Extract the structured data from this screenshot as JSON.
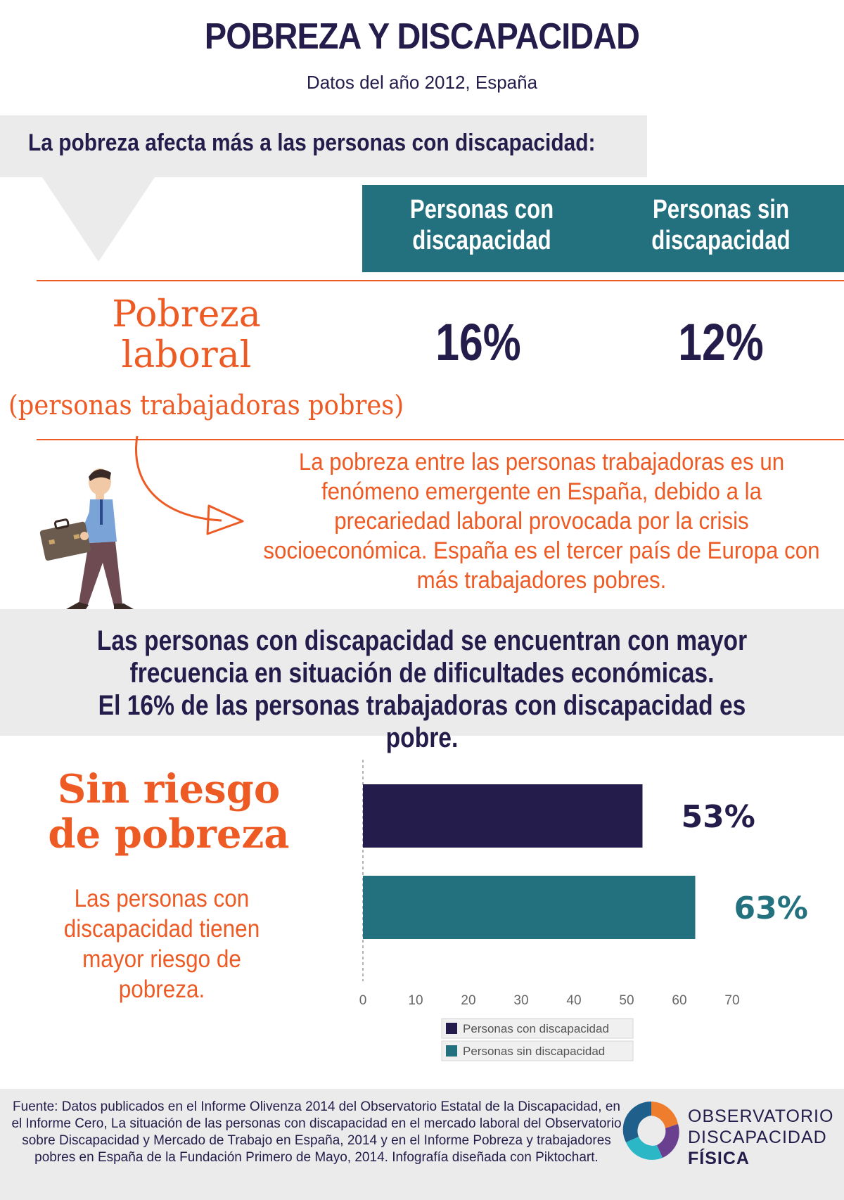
{
  "header": {
    "title": "POBREZA Y DISCAPACIDAD",
    "subtitle": "Datos del año 2012, España"
  },
  "intro": "La pobreza afecta más a las personas con discapacidad:",
  "table": {
    "col_con": "Personas con discapacidad",
    "col_sin": "Personas sin discapacidad",
    "row_label": "Pobreza laboral",
    "row_sublabel": "(personas trabajadoras pobres)",
    "value_con": "16%",
    "value_sin": "12%"
  },
  "explanation": "La pobreza entre las personas trabajadoras es un fenómeno emergente en España, debido a la precariedad laboral provocada por la crisis socioeconómica. España es el tercer país de Europa con más trabajadores pobres.",
  "band": {
    "line1": "Las personas con discapacidad se encuentran con mayor",
    "line2": "frecuencia en situación de dificultades económicas.",
    "line3": "El 16% de las personas trabajadoras con discapacidad es pobre."
  },
  "riesgo": {
    "heading": "Sin riesgo de pobreza",
    "text": "Las personas con discapacidad tienen mayor riesgo de pobreza."
  },
  "chart_data": {
    "type": "bar",
    "orientation": "horizontal",
    "series": [
      {
        "name": "Personas con discapacidad",
        "value": 53,
        "label": "53%",
        "color": "#241c4a"
      },
      {
        "name": "Personas sin discapacidad",
        "value": 63,
        "label": "63%",
        "color": "#23717f"
      }
    ],
    "xlim": [
      0,
      70
    ],
    "xticks": [
      0,
      10,
      20,
      30,
      40,
      50,
      60,
      70
    ],
    "legend_position": "bottom"
  },
  "footer": {
    "source": "Fuente: Datos publicados en el Informe Olivenza 2014 del Observatorio Estatal de la Discapacidad, en el Informe Cero, La situación de las personas con discapacidad en el mercado laboral del Observatorio sobre Discapacidad y Mercado de Trabajo en España, 2014 y en el Informe Pobreza y trabajadores pobres en España de la Fundación Primero de Mayo, 2014. Infografía diseñada con Piktochart.",
    "logo_line1": "OBSERVATORIO",
    "logo_line2": "DISCAPACIDAD",
    "logo_line3": "FÍSICA"
  },
  "colors": {
    "navy": "#241c4a",
    "teal": "#23717f",
    "orange": "#ee5a24",
    "gray": "#ebebeb"
  }
}
